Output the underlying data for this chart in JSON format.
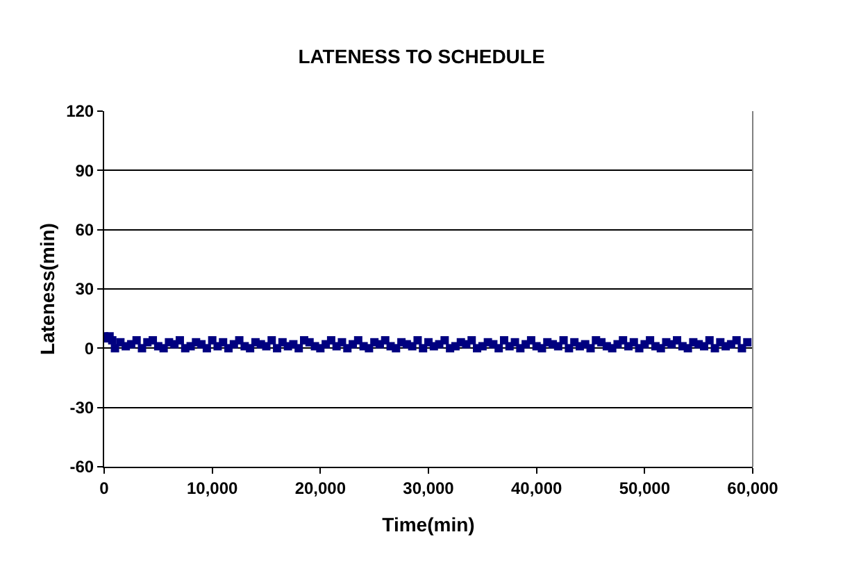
{
  "chart_data": {
    "type": "scatter",
    "title": "LATENESS TO SCHEDULE",
    "xlabel": "Time(min)",
    "ylabel": "Lateness(min)",
    "xlim": [
      0,
      60000
    ],
    "ylim": [
      -60,
      120
    ],
    "xticks": [
      0,
      {
        "value": 10000,
        "label": "10,000"
      },
      {
        "value": 20000,
        "label": "20,000"
      },
      {
        "value": 30000,
        "label": "30,000"
      },
      {
        "value": 40000,
        "label": "40,000"
      },
      {
        "value": 50000,
        "label": "50,000"
      },
      {
        "value": 60000,
        "label": "60,000"
      }
    ],
    "yticks": [
      -60,
      -30,
      0,
      30,
      60,
      90,
      120
    ],
    "grid": "y",
    "marker": "square",
    "series": [
      {
        "color": "#000080",
        "x": [
          0,
          250,
          500,
          750,
          1000,
          1500,
          2000,
          2500,
          3000,
          3500,
          4000,
          4500,
          5000,
          5500,
          6000,
          6500,
          7000,
          7500,
          8000,
          8500,
          9000,
          9500,
          10000,
          10500,
          11000,
          11500,
          12000,
          12500,
          13000,
          13500,
          14000,
          14500,
          15000,
          15500,
          16000,
          16500,
          17000,
          17500,
          18000,
          18500,
          19000,
          19500,
          20000,
          20500,
          21000,
          21500,
          22000,
          22500,
          23000,
          23500,
          24000,
          24500,
          25000,
          25500,
          26000,
          26500,
          27000,
          27500,
          28000,
          28500,
          29000,
          29500,
          30000,
          30500,
          31000,
          31500,
          32000,
          32500,
          33000,
          33500,
          34000,
          34500,
          35000,
          35500,
          36000,
          36500,
          37000,
          37500,
          38000,
          38500,
          39000,
          39500,
          40000,
          40500,
          41000,
          41500,
          42000,
          42500,
          43000,
          43500,
          44000,
          44500,
          45000,
          45500,
          46000,
          46500,
          47000,
          47500,
          48000,
          48500,
          49000,
          49500,
          50000,
          50500,
          51000,
          51500,
          52000,
          52500,
          53000,
          53500,
          54000,
          54500,
          55000,
          55500,
          56000,
          56500,
          57000,
          57500,
          58000,
          58500,
          59000,
          59500
        ],
        "values": [
          6,
          5,
          6,
          4,
          0,
          3,
          1,
          2,
          4,
          0,
          3,
          4,
          1,
          0,
          3,
          2,
          4,
          0,
          1,
          3,
          2,
          0,
          4,
          1,
          3,
          0,
          2,
          4,
          1,
          0,
          3,
          2,
          1,
          4,
          0,
          3,
          1,
          2,
          0,
          4,
          3,
          1,
          0,
          2,
          4,
          1,
          3,
          0,
          2,
          4,
          1,
          0,
          3,
          2,
          4,
          1,
          0,
          3,
          2,
          1,
          4,
          0,
          3,
          1,
          2,
          4,
          0,
          1,
          3,
          2,
          4,
          0,
          1,
          3,
          2,
          0,
          4,
          1,
          3,
          0,
          2,
          4,
          1,
          0,
          3,
          2,
          1,
          4,
          0,
          3,
          1,
          2,
          0,
          4,
          3,
          1,
          0,
          2,
          4,
          1,
          3,
          0,
          2,
          4,
          1,
          0,
          3,
          2,
          4,
          1,
          0,
          3,
          2,
          1,
          4,
          0,
          3,
          1,
          2,
          4,
          0,
          3
        ]
      }
    ]
  }
}
